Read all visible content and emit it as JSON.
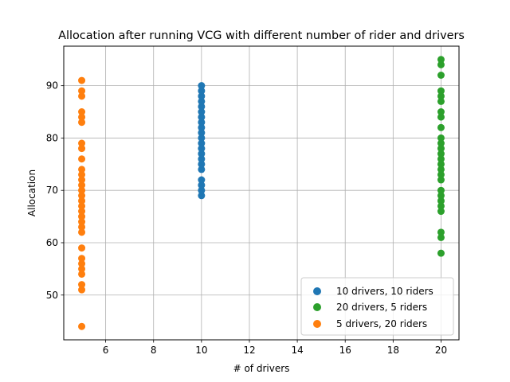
{
  "chart_data": {
    "type": "scatter",
    "title": "Allocation after running VCG with different number of rider and drivers",
    "xlabel": "# of drivers",
    "ylabel": "Allocation",
    "xlim": [
      4.25,
      20.75
    ],
    "ylim": [
      41.45,
      97.55
    ],
    "xticks": [
      6,
      8,
      10,
      12,
      14,
      16,
      18,
      20
    ],
    "yticks": [
      50,
      60,
      70,
      80,
      90
    ],
    "grid": true,
    "legend_position": "lower right",
    "series": [
      {
        "name": "10 drivers, 10 riders",
        "color": "#1f77b4",
        "x": 10,
        "y": [
          69,
          70,
          71,
          72,
          74,
          75,
          76,
          77,
          78,
          79,
          80,
          81,
          82,
          83,
          84,
          85,
          86,
          87,
          88,
          89,
          90
        ]
      },
      {
        "name": "20 drivers, 5 riders",
        "color": "#2ca02c",
        "x": 20,
        "y": [
          58,
          61,
          62,
          66,
          67,
          68,
          69,
          70,
          72,
          73,
          74,
          75,
          76,
          77,
          78,
          79,
          80,
          82,
          84,
          85,
          87,
          88,
          89,
          92,
          94,
          95
        ]
      },
      {
        "name": "5 drivers, 20 riders",
        "color": "#ff7f0e",
        "x": 5,
        "y": [
          44,
          51,
          52,
          54,
          55,
          56,
          57,
          59,
          62,
          63,
          64,
          65,
          66,
          67,
          68,
          69,
          70,
          71,
          72,
          73,
          74,
          76,
          78,
          79,
          83,
          84,
          85,
          88,
          89,
          91
        ]
      }
    ]
  }
}
